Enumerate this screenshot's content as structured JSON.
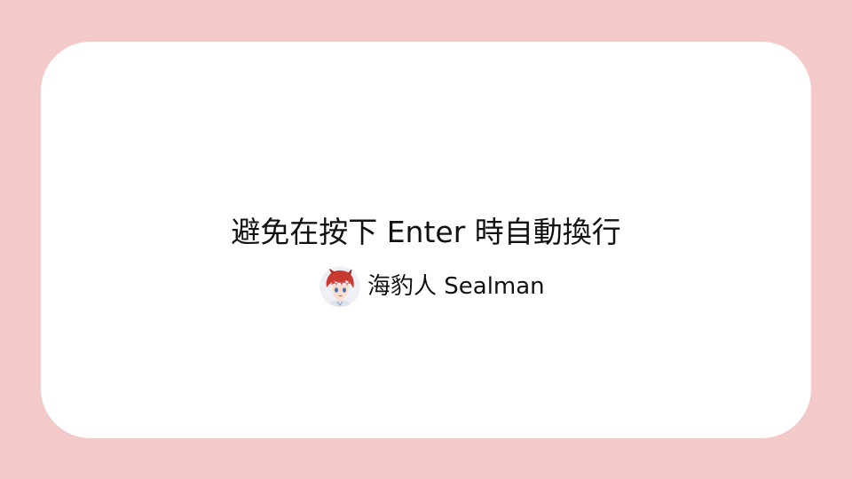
{
  "theme": {
    "background": "#f4c9ca",
    "card": "#ffffff"
  },
  "title": "避免在按下 Enter 時自動換行",
  "author": {
    "name": "海豹人 Sealman",
    "avatar_icon": "anime-avatar-icon"
  }
}
